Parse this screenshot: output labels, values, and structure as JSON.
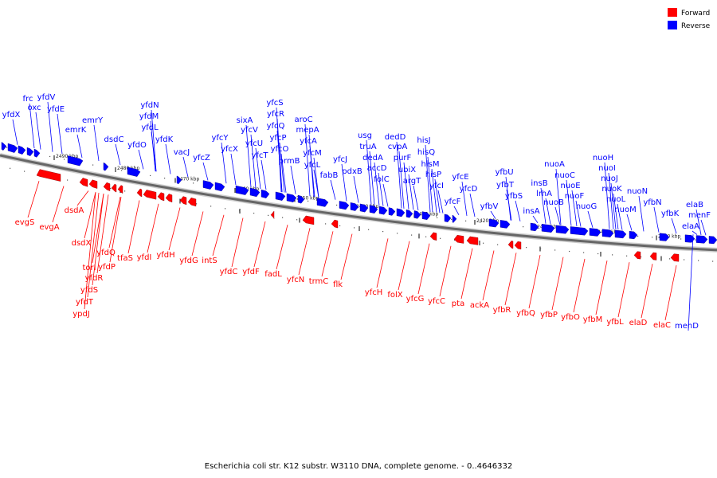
{
  "caption": "Escherichia coli str. K12 substr. W3110 DNA, complete genome. - 0..4646332",
  "legend": [
    {
      "label": "Forward",
      "color": "#ff0000"
    },
    {
      "label": "Reverse",
      "color": "#0000ff"
    }
  ],
  "colors": {
    "forward": "#ff0000",
    "reverse": "#0000ff",
    "backbone": "#666666"
  },
  "ticks": [
    "2490 kbp",
    "2480 kbp",
    "2470 kbp",
    "2460 kbp",
    "2450 kbp",
    "2440 kbp",
    "2430 kbp",
    "2420 kbp",
    "2410 kbp",
    "2400 kbp",
    "2390 kbp"
  ],
  "reverse_labels": [
    "yfdX",
    "frc",
    "oxc",
    "yfdV",
    "yfdE",
    "emrK",
    "emrY",
    "dsdC",
    "yfdO",
    "yfdN",
    "yfdM",
    "yfdL",
    "yfdK",
    "vacJ",
    "yfcZ",
    "yfcY",
    "sixA",
    "yfcX",
    "yfcV",
    "yfcU",
    "yfcT",
    "yfcS",
    "yfcR",
    "yfcQ",
    "yfcP",
    "yfcO",
    "prmB",
    "aroC",
    "mepA",
    "yfcA",
    "yfcM",
    "yfcL",
    "yfcJ",
    "fabB",
    "usg",
    "pdxB",
    "truA",
    "dedA",
    "accD",
    "folC",
    "dedD",
    "cvpA",
    "purF",
    "ubiX",
    "argT",
    "hisJ",
    "hisQ",
    "hisM",
    "hisP",
    "yfcI",
    "yfcE",
    "yfcF",
    "yfcD",
    "yfbU",
    "yfbV",
    "yfbT",
    "yfbS",
    "insA",
    "insB",
    "nuoA",
    "lrhA",
    "nuoB",
    "nuoC",
    "nuoE",
    "nuoF",
    "nuoG",
    "nuoH",
    "nuoI",
    "nuoJ",
    "nuoK",
    "nuoL",
    "nuoM",
    "nuoN",
    "yfbN",
    "yfbK",
    "elaB",
    "menF",
    "elaA",
    "menD"
  ],
  "forward_labels": [
    "evgS",
    "evgA",
    "dsdA",
    "dsdX",
    "yfdQ",
    "torI",
    "yfdP",
    "yfdR",
    "yfdS",
    "yfdT",
    "ypdJ",
    "tfaS",
    "yfdI",
    "yfdH",
    "yfdG",
    "intS",
    "yfdC",
    "yfdF",
    "fadL",
    "yfcN",
    "trmC",
    "flk",
    "yfcH",
    "folX",
    "yfcG",
    "yfcC",
    "pta",
    "ackA",
    "yfbR",
    "yfbQ",
    "yfbP",
    "yfbO",
    "yfbM",
    "yfbL",
    "elaD",
    "elaC"
  ]
}
